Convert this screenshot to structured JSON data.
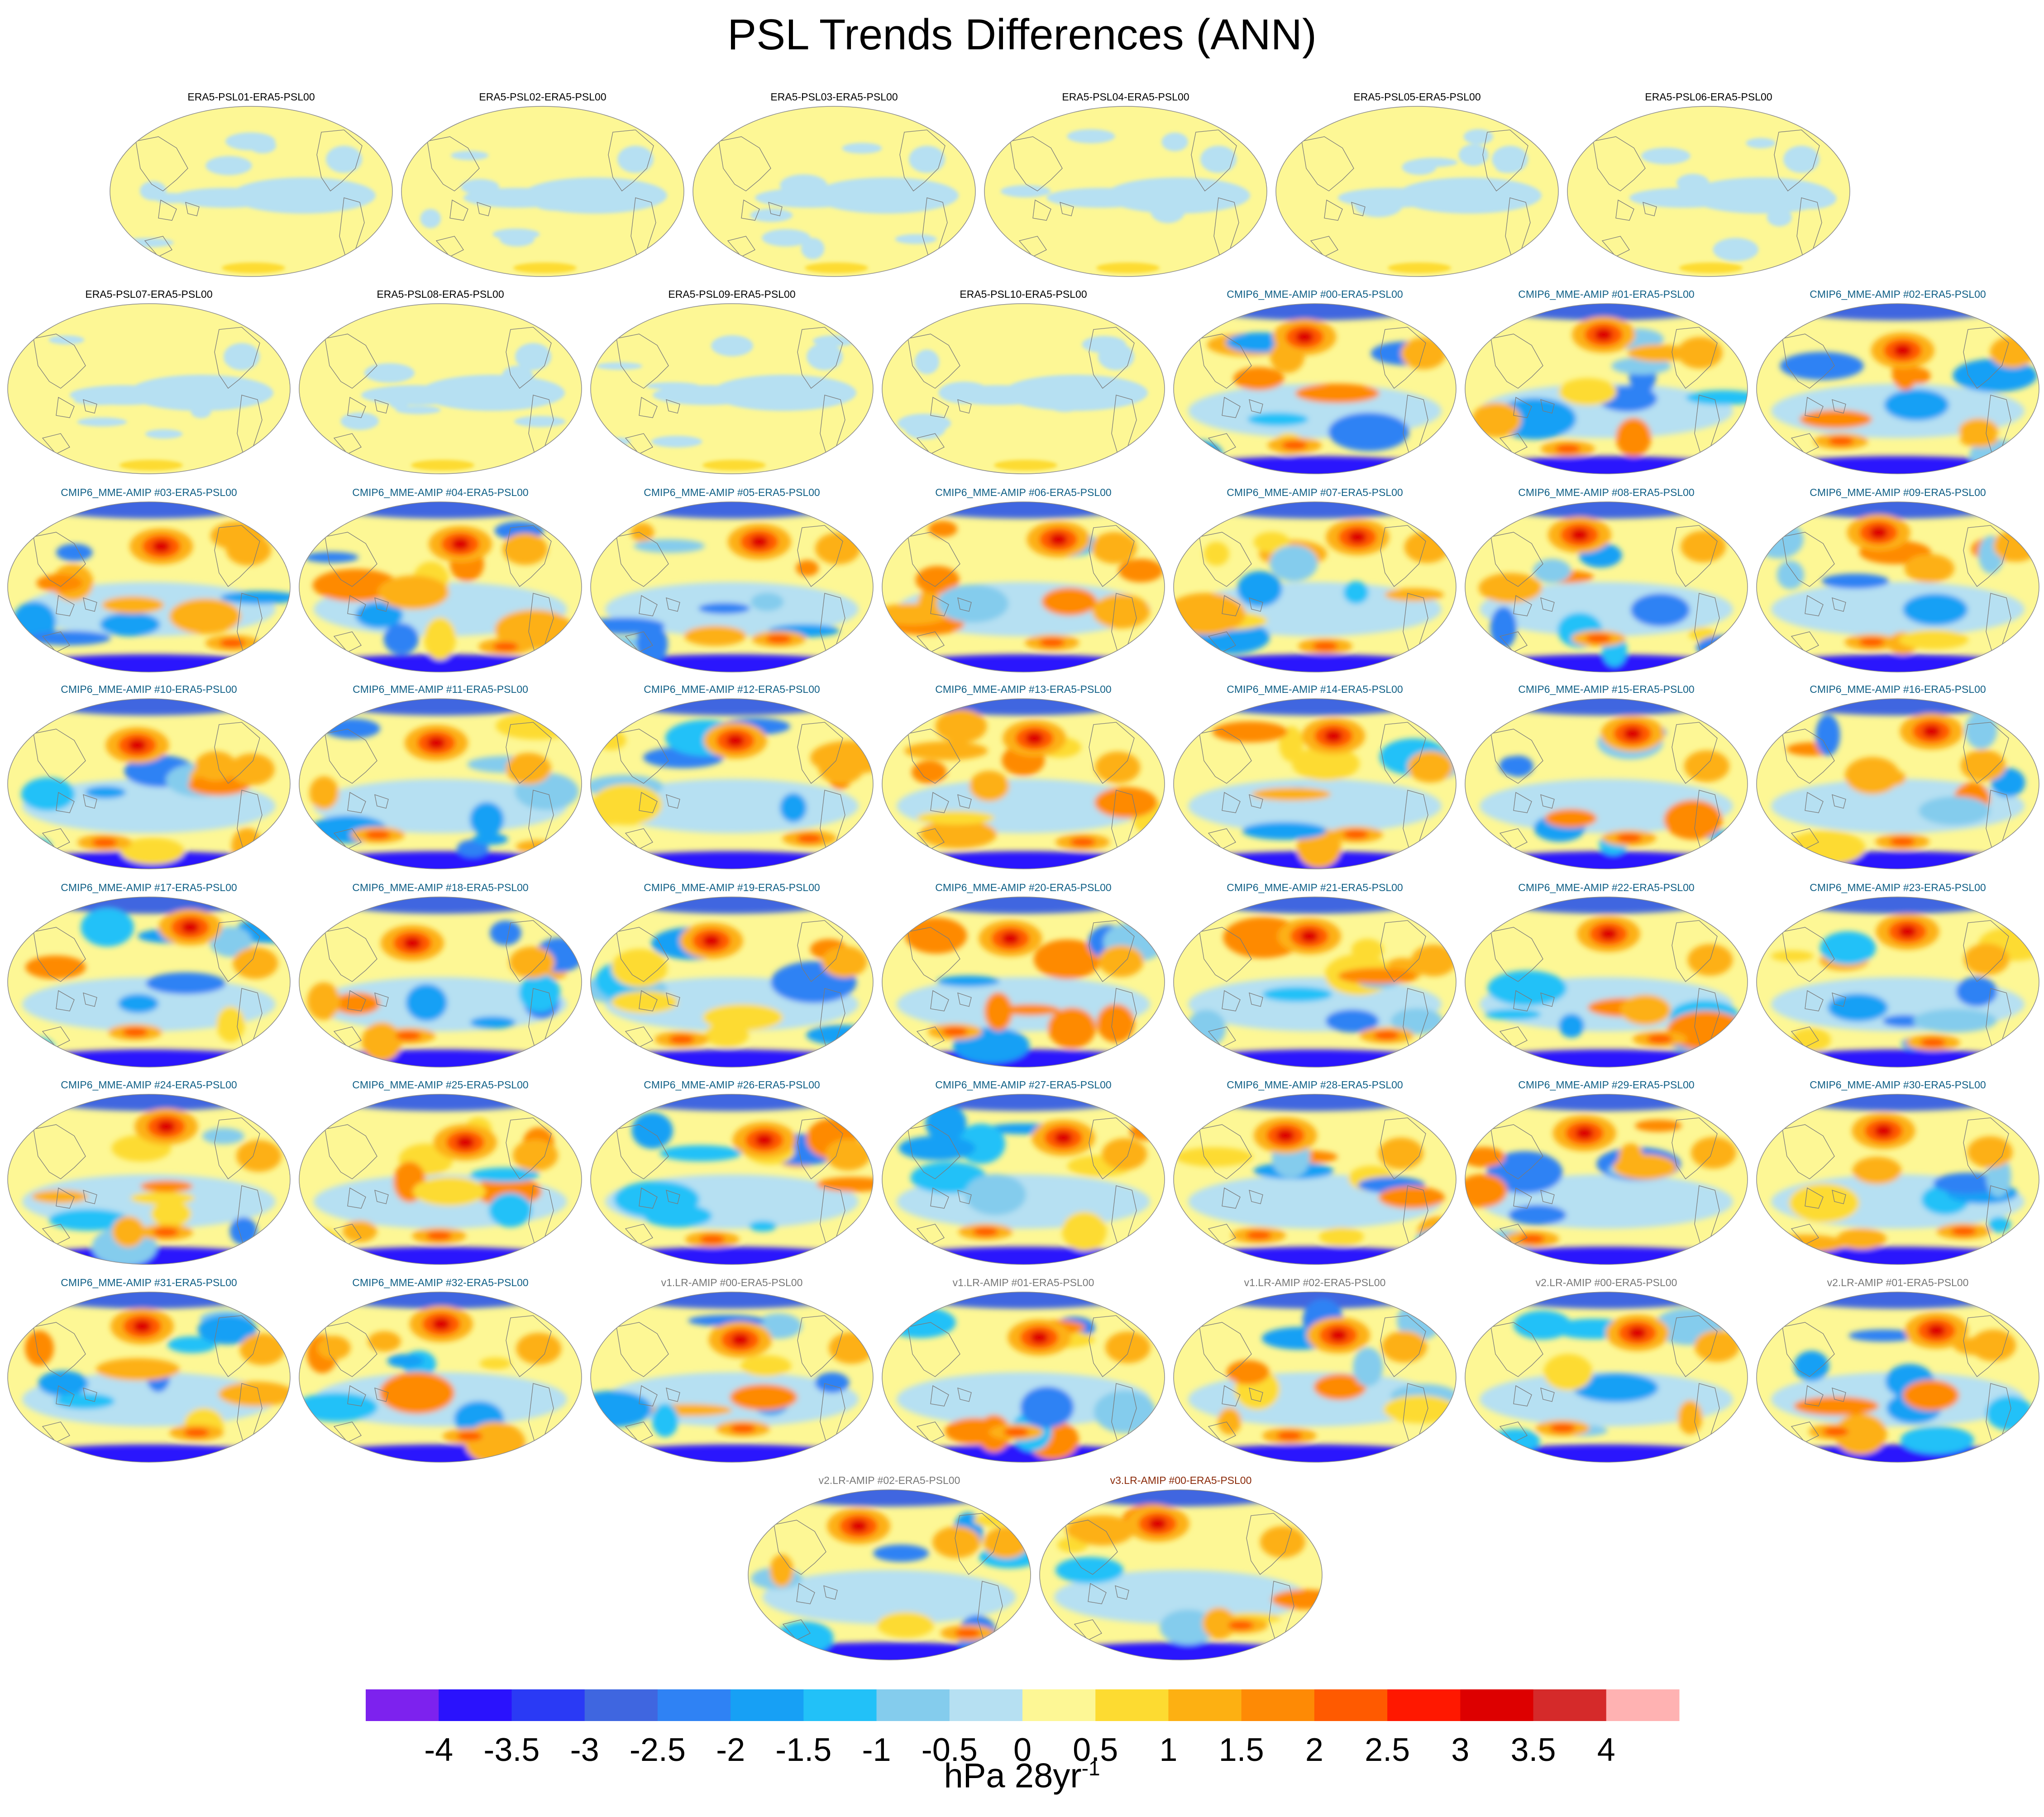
{
  "title": "PSL Trends Differences (ANN)",
  "colorbar": {
    "colors": [
      "#7d22ee",
      "#2a12fd",
      "#2a3af5",
      "#3f66e0",
      "#2f82f4",
      "#17a0f5",
      "#22c1f8",
      "#84cced",
      "#b6e0f2",
      "#fdf795",
      "#fddb31",
      "#fdb012",
      "#fe8a05",
      "#ff5a00",
      "#ff1800",
      "#dd0000",
      "#d52a2a",
      "#ffb2b2"
    ],
    "labels": [
      "-4",
      "-3.5",
      "-3",
      "-2.5",
      "-2",
      "-1.5",
      "-1",
      "-0.5",
      "0",
      "0.5",
      "1",
      "1.5",
      "2",
      "2.5",
      "3",
      "3.5",
      "4"
    ],
    "units_main": "hPa 28yr",
    "units_exp": "-1"
  },
  "label_colors": {
    "era5": "#000000",
    "cmip": "#0f5f86",
    "lr": "#777777",
    "v3": "#8a2a0a"
  },
  "panels": [
    {
      "label": "ERA5-PSL01-ERA5-PSL00",
      "group": "era5",
      "anomaly": "weak"
    },
    {
      "label": "ERA5-PSL02-ERA5-PSL00",
      "group": "era5",
      "anomaly": "weak"
    },
    {
      "label": "ERA5-PSL03-ERA5-PSL00",
      "group": "era5",
      "anomaly": "weak"
    },
    {
      "label": "ERA5-PSL04-ERA5-PSL00",
      "group": "era5",
      "anomaly": "weak"
    },
    {
      "label": "ERA5-PSL05-ERA5-PSL00",
      "group": "era5",
      "anomaly": "weak"
    },
    {
      "label": "ERA5-PSL06-ERA5-PSL00",
      "group": "era5",
      "anomaly": "weak"
    },
    {
      "label": "ERA5-PSL07-ERA5-PSL00",
      "group": "era5",
      "anomaly": "weak"
    },
    {
      "label": "ERA5-PSL08-ERA5-PSL00",
      "group": "era5",
      "anomaly": "weak"
    },
    {
      "label": "ERA5-PSL09-ERA5-PSL00",
      "group": "era5",
      "anomaly": "weak"
    },
    {
      "label": "ERA5-PSL10-ERA5-PSL00",
      "group": "era5",
      "anomaly": "weak"
    },
    {
      "label": "CMIP6_MME-AMIP  #00-ERA5-PSL00",
      "group": "cmip",
      "anomaly": "strong"
    },
    {
      "label": "CMIP6_MME-AMIP  #01-ERA5-PSL00",
      "group": "cmip",
      "anomaly": "strong"
    },
    {
      "label": "CMIP6_MME-AMIP  #02-ERA5-PSL00",
      "group": "cmip",
      "anomaly": "strong"
    },
    {
      "label": "CMIP6_MME-AMIP  #03-ERA5-PSL00",
      "group": "cmip",
      "anomaly": "strong"
    },
    {
      "label": "CMIP6_MME-AMIP  #04-ERA5-PSL00",
      "group": "cmip",
      "anomaly": "strong"
    },
    {
      "label": "CMIP6_MME-AMIP  #05-ERA5-PSL00",
      "group": "cmip",
      "anomaly": "strong"
    },
    {
      "label": "CMIP6_MME-AMIP  #06-ERA5-PSL00",
      "group": "cmip",
      "anomaly": "strong"
    },
    {
      "label": "CMIP6_MME-AMIP  #07-ERA5-PSL00",
      "group": "cmip",
      "anomaly": "strong"
    },
    {
      "label": "CMIP6_MME-AMIP  #08-ERA5-PSL00",
      "group": "cmip",
      "anomaly": "strong"
    },
    {
      "label": "CMIP6_MME-AMIP  #09-ERA5-PSL00",
      "group": "cmip",
      "anomaly": "strong"
    },
    {
      "label": "CMIP6_MME-AMIP  #10-ERA5-PSL00",
      "group": "cmip",
      "anomaly": "strong"
    },
    {
      "label": "CMIP6_MME-AMIP  #11-ERA5-PSL00",
      "group": "cmip",
      "anomaly": "strong"
    },
    {
      "label": "CMIP6_MME-AMIP  #12-ERA5-PSL00",
      "group": "cmip",
      "anomaly": "strong"
    },
    {
      "label": "CMIP6_MME-AMIP  #13-ERA5-PSL00",
      "group": "cmip",
      "anomaly": "strong"
    },
    {
      "label": "CMIP6_MME-AMIP  #14-ERA5-PSL00",
      "group": "cmip",
      "anomaly": "strong"
    },
    {
      "label": "CMIP6_MME-AMIP  #15-ERA5-PSL00",
      "group": "cmip",
      "anomaly": "strong"
    },
    {
      "label": "CMIP6_MME-AMIP  #16-ERA5-PSL00",
      "group": "cmip",
      "anomaly": "strong"
    },
    {
      "label": "CMIP6_MME-AMIP  #17-ERA5-PSL00",
      "group": "cmip",
      "anomaly": "strong"
    },
    {
      "label": "CMIP6_MME-AMIP  #18-ERA5-PSL00",
      "group": "cmip",
      "anomaly": "strong"
    },
    {
      "label": "CMIP6_MME-AMIP  #19-ERA5-PSL00",
      "group": "cmip",
      "anomaly": "strong"
    },
    {
      "label": "CMIP6_MME-AMIP  #20-ERA5-PSL00",
      "group": "cmip",
      "anomaly": "strong"
    },
    {
      "label": "CMIP6_MME-AMIP  #21-ERA5-PSL00",
      "group": "cmip",
      "anomaly": "strong"
    },
    {
      "label": "CMIP6_MME-AMIP  #22-ERA5-PSL00",
      "group": "cmip",
      "anomaly": "strong"
    },
    {
      "label": "CMIP6_MME-AMIP  #23-ERA5-PSL00",
      "group": "cmip",
      "anomaly": "strong"
    },
    {
      "label": "CMIP6_MME-AMIP  #24-ERA5-PSL00",
      "group": "cmip",
      "anomaly": "strong"
    },
    {
      "label": "CMIP6_MME-AMIP  #25-ERA5-PSL00",
      "group": "cmip",
      "anomaly": "strong"
    },
    {
      "label": "CMIP6_MME-AMIP  #26-ERA5-PSL00",
      "group": "cmip",
      "anomaly": "strong"
    },
    {
      "label": "CMIP6_MME-AMIP  #27-ERA5-PSL00",
      "group": "cmip",
      "anomaly": "strong"
    },
    {
      "label": "CMIP6_MME-AMIP  #28-ERA5-PSL00",
      "group": "cmip",
      "anomaly": "strong"
    },
    {
      "label": "CMIP6_MME-AMIP  #29-ERA5-PSL00",
      "group": "cmip",
      "anomaly": "strong"
    },
    {
      "label": "CMIP6_MME-AMIP  #30-ERA5-PSL00",
      "group": "cmip",
      "anomaly": "strong"
    },
    {
      "label": "CMIP6_MME-AMIP  #31-ERA5-PSL00",
      "group": "cmip",
      "anomaly": "strong"
    },
    {
      "label": "CMIP6_MME-AMIP  #32-ERA5-PSL00",
      "group": "cmip",
      "anomaly": "strong"
    },
    {
      "label": "v1.LR-AMIP  #00-ERA5-PSL00",
      "group": "lr",
      "anomaly": "strong"
    },
    {
      "label": "v1.LR-AMIP  #01-ERA5-PSL00",
      "group": "lr",
      "anomaly": "strong"
    },
    {
      "label": "v1.LR-AMIP  #02-ERA5-PSL00",
      "group": "lr",
      "anomaly": "strong"
    },
    {
      "label": "v2.LR-AMIP  #00-ERA5-PSL00",
      "group": "lr",
      "anomaly": "strong"
    },
    {
      "label": "v2.LR-AMIP  #01-ERA5-PSL00",
      "group": "lr",
      "anomaly": "strong"
    },
    {
      "label": "v2.LR-AMIP  #02-ERA5-PSL00",
      "group": "lr",
      "anomaly": "strong"
    },
    {
      "label": "v3.LR-AMIP  #00-ERA5-PSL00",
      "group": "v3",
      "anomaly": "strong"
    }
  ],
  "chart_data": {
    "type": "heatmap",
    "title": "PSL Trends Differences (ANN)",
    "projection": "global map panels (Robinson-like)",
    "variable": "sea level pressure trend difference",
    "color_levels": [
      -4,
      -3.5,
      -3,
      -2.5,
      -2,
      -1.5,
      -1,
      -0.5,
      0,
      0.5,
      1,
      1.5,
      2,
      2.5,
      3,
      3.5,
      4
    ],
    "units": "hPa 28yr^-1",
    "panel_count": 50
  }
}
